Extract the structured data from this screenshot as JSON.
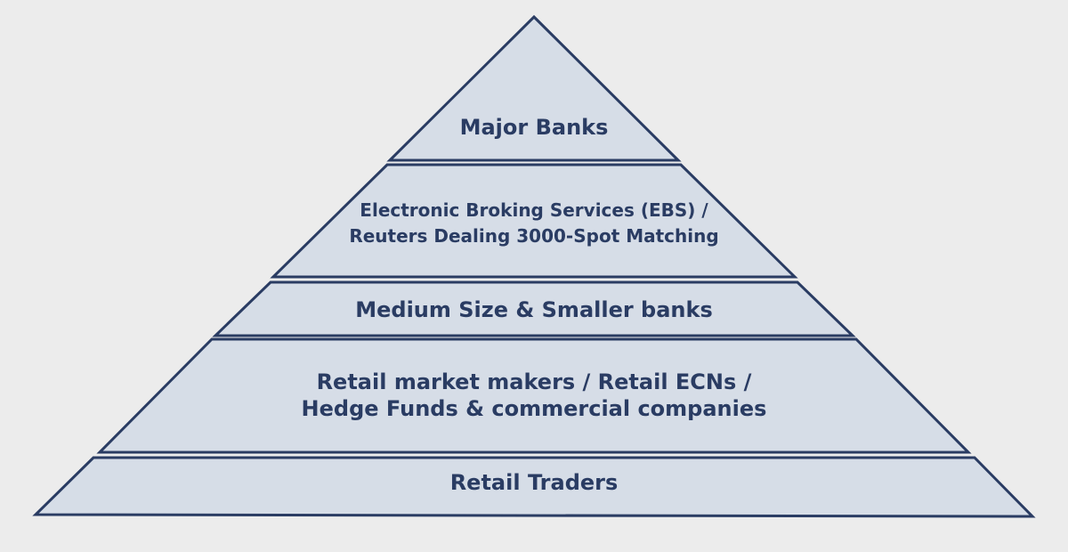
{
  "pyramid": {
    "tiers": [
      {
        "name": "major-banks",
        "lines": [
          "Major Banks"
        ]
      },
      {
        "name": "ebs-reuters",
        "lines": [
          "Electronic Broking Services (EBS) /",
          "Reuters Dealing 3000-Spot Matching"
        ]
      },
      {
        "name": "medium-smaller-banks",
        "lines": [
          "Medium Size & Smaller banks"
        ]
      },
      {
        "name": "retail-makers-hedge-funds",
        "lines": [
          "Retail market makers / Retail ECNs /",
          "Hedge Funds & commercial companies"
        ]
      },
      {
        "name": "retail-traders",
        "lines": [
          "Retail Traders"
        ]
      }
    ],
    "colors": {
      "fill": "#d6dde7",
      "stroke": "#2a3c63",
      "text": "#2a3c63",
      "background": "#ececec"
    }
  }
}
